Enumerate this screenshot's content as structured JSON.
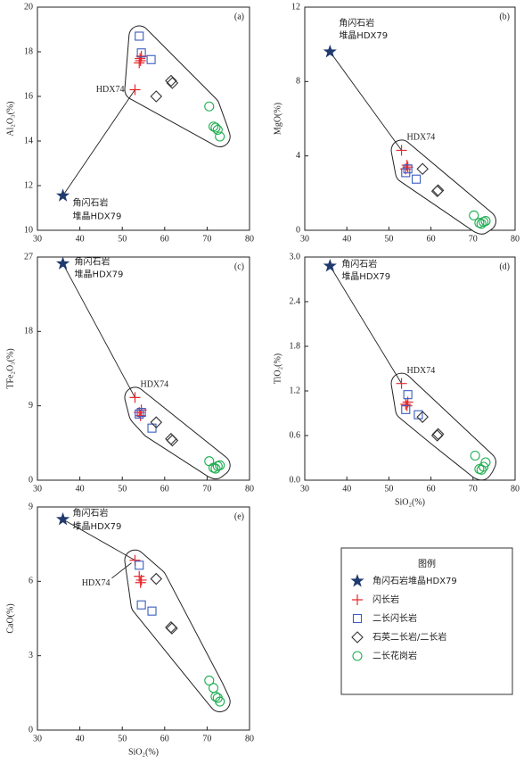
{
  "legend": {
    "title": "图例",
    "series": [
      {
        "name": "角闪石岩堆晶HDX79",
        "color": "#1f3a6e",
        "marker": "star"
      },
      {
        "name": "闪长岩",
        "color": "#e8282b",
        "marker": "plus"
      },
      {
        "name": "二长闪长岩",
        "color": "#3a5bbf",
        "marker": "square"
      },
      {
        "name": "石英二长岩/二长岩",
        "color": "#333333",
        "marker": "diamond"
      },
      {
        "name": "二长花岗岩",
        "color": "#1fae52",
        "marker": "circle"
      }
    ]
  },
  "chart_data": [
    {
      "type": "scatter",
      "panel": "(a)",
      "ylabel": "Al₂O₃(%)",
      "xlim": [
        30,
        80
      ],
      "xticks": [
        30,
        40,
        50,
        60,
        70,
        80
      ],
      "ylim": [
        10,
        20
      ],
      "yticks": [
        10,
        12,
        14,
        16,
        18,
        20
      ],
      "star_label": [
        "角闪石岩",
        "堆晶HDX79"
      ],
      "point_label": "HDX74",
      "series": [
        {
          "x": [
            36
          ],
          "values": [
            11.55
          ]
        },
        {
          "x": [
            53,
            54,
            54.3,
            54.5,
            54.2
          ],
          "values": [
            16.3,
            17.5,
            17.6,
            17.8,
            17.7
          ]
        },
        {
          "x": [
            54,
            54.5,
            56.8
          ],
          "values": [
            18.7,
            17.95,
            17.65
          ]
        },
        {
          "x": [
            58,
            61.5,
            61.8
          ],
          "values": [
            16.0,
            16.7,
            16.6
          ]
        },
        {
          "x": [
            70.5,
            71.5,
            72.5,
            73,
            72
          ],
          "values": [
            15.55,
            14.65,
            14.5,
            14.2,
            14.6
          ]
        }
      ]
    },
    {
      "type": "scatter",
      "panel": "(b)",
      "ylabel": "MgO(%)",
      "xlim": [
        30,
        80
      ],
      "xticks": [
        30,
        40,
        50,
        60,
        70,
        80
      ],
      "ylim": [
        0,
        12
      ],
      "yticks": [
        0,
        4,
        8,
        12
      ],
      "star_label": [
        "角闪石岩",
        "堆晶HDX79"
      ],
      "point_label": "HDX74",
      "series": [
        {
          "x": [
            36
          ],
          "values": [
            9.6
          ]
        },
        {
          "x": [
            53,
            54,
            54.5,
            54.3
          ],
          "values": [
            4.3,
            3.3,
            3.4,
            3.5
          ]
        },
        {
          "x": [
            54,
            56.5,
            54.5
          ],
          "values": [
            3.1,
            2.75,
            3.3
          ]
        },
        {
          "x": [
            58,
            61.5,
            61.7
          ],
          "values": [
            3.3,
            2.1,
            2.15
          ]
        },
        {
          "x": [
            70.2,
            71.5,
            72.5,
            73,
            72
          ],
          "values": [
            0.8,
            0.4,
            0.45,
            0.5,
            0.35
          ]
        }
      ]
    },
    {
      "type": "scatter",
      "panel": "(c)",
      "ylabel": "TFe₂O₃(%)",
      "xlim": [
        30,
        80
      ],
      "xticks": [
        30,
        40,
        50,
        60,
        70,
        80
      ],
      "ylim": [
        0,
        27
      ],
      "yticks": [
        0,
        9,
        18,
        27
      ],
      "star_label": [
        "角闪石岩",
        "堆晶HDX79"
      ],
      "point_label": "HDX74",
      "series": [
        {
          "x": [
            36
          ],
          "values": [
            26.2
          ]
        },
        {
          "x": [
            53,
            54,
            54.5,
            54.3
          ],
          "values": [
            10.0,
            8.2,
            8.5,
            7.8
          ]
        },
        {
          "x": [
            54,
            54.5,
            57
          ],
          "values": [
            8.0,
            8.2,
            6.3
          ]
        },
        {
          "x": [
            58,
            61.5,
            61.8
          ],
          "values": [
            7.0,
            5.0,
            4.8
          ]
        },
        {
          "x": [
            70.5,
            71.5,
            72.5,
            73,
            72
          ],
          "values": [
            2.3,
            1.5,
            1.7,
            1.8,
            1.4
          ]
        }
      ]
    },
    {
      "type": "scatter",
      "panel": "(d)",
      "ylabel": "TiO₂(%)",
      "xlabel": "SiO₂(%)",
      "xlim": [
        30,
        80
      ],
      "xticks": [
        30,
        40,
        50,
        60,
        70,
        80
      ],
      "ylim": [
        0,
        3
      ],
      "yticks": [
        {
          "value": 0,
          "label": "0.0"
        },
        0.6,
        1.2,
        1.8,
        2.4,
        {
          "value": 3,
          "label": "3.0"
        }
      ],
      "star_label": [
        "角闪石岩",
        "堆晶HDX79"
      ],
      "point_label": "HDX74",
      "series": [
        {
          "x": [
            36
          ],
          "values": [
            2.88
          ]
        },
        {
          "x": [
            53,
            54,
            54.5,
            54.3
          ],
          "values": [
            1.3,
            1.02,
            1.05,
            1.0
          ]
        },
        {
          "x": [
            54.5,
            54,
            57
          ],
          "values": [
            1.15,
            0.95,
            0.88
          ]
        },
        {
          "x": [
            58,
            61.5,
            61.7
          ],
          "values": [
            0.85,
            0.6,
            0.62
          ]
        },
        {
          "x": [
            70.5,
            71.5,
            72.5,
            73,
            72
          ],
          "values": [
            0.33,
            0.15,
            0.18,
            0.24,
            0.14
          ]
        }
      ]
    },
    {
      "type": "scatter",
      "panel": "(e)",
      "ylabel": "CaO(%)",
      "xlabel": "SiO₂(%)",
      "xlim": [
        30,
        80
      ],
      "xticks": [
        30,
        40,
        50,
        60,
        70,
        80
      ],
      "ylim": [
        0,
        9
      ],
      "yticks": [
        0,
        3,
        6,
        9
      ],
      "star_label": [
        "角闪石岩",
        "堆晶HDX79"
      ],
      "point_label": "HDX74",
      "series": [
        {
          "x": [
            36
          ],
          "values": [
            8.5
          ]
        },
        {
          "x": [
            53,
            54,
            54.5,
            54.3
          ],
          "values": [
            6.85,
            6.2,
            6.05,
            5.95
          ]
        },
        {
          "x": [
            54,
            54.5,
            57
          ],
          "values": [
            6.65,
            5.05,
            4.8
          ]
        },
        {
          "x": [
            58,
            61.5,
            61.7
          ],
          "values": [
            6.1,
            4.15,
            4.1
          ]
        },
        {
          "x": [
            70.5,
            71.5,
            72.5,
            73,
            72
          ],
          "values": [
            2.0,
            1.7,
            1.3,
            1.15,
            1.35
          ]
        }
      ]
    }
  ]
}
